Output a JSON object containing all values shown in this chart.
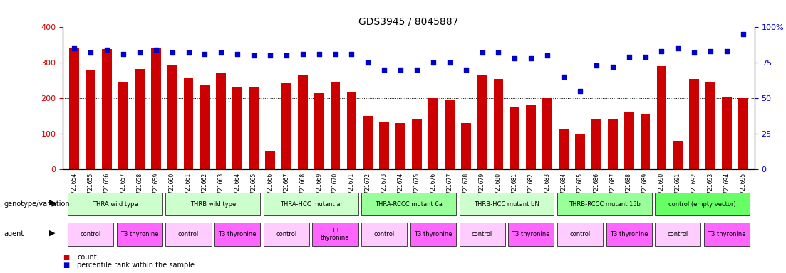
{
  "title": "GDS3945 / 8045887",
  "samples": [
    "GSM721654",
    "GSM721655",
    "GSM721656",
    "GSM721657",
    "GSM721658",
    "GSM721659",
    "GSM721660",
    "GSM721661",
    "GSM721662",
    "GSM721663",
    "GSM721664",
    "GSM721665",
    "GSM721666",
    "GSM721667",
    "GSM721668",
    "GSM721669",
    "GSM721670",
    "GSM721671",
    "GSM721672",
    "GSM721673",
    "GSM721674",
    "GSM721675",
    "GSM721676",
    "GSM721677",
    "GSM721678",
    "GSM721679",
    "GSM721680",
    "GSM721681",
    "GSM721682",
    "GSM721683",
    "GSM721684",
    "GSM721685",
    "GSM721686",
    "GSM721687",
    "GSM721688",
    "GSM721689",
    "GSM721690",
    "GSM721691",
    "GSM721692",
    "GSM721693",
    "GSM721694",
    "GSM721695"
  ],
  "counts": [
    340,
    278,
    338,
    245,
    282,
    340,
    293,
    256,
    238,
    270,
    233,
    230,
    50,
    243,
    265,
    215,
    245,
    217,
    150,
    135,
    130,
    140,
    200,
    195,
    130,
    265,
    255,
    175,
    180,
    200,
    115,
    100,
    140,
    140,
    160,
    155,
    290,
    80,
    255,
    245,
    205,
    200
  ],
  "percentile_ranks": [
    85,
    82,
    84,
    81,
    82,
    84,
    82,
    82,
    81,
    82,
    81,
    80,
    80,
    80,
    81,
    81,
    81,
    81,
    75,
    70,
    70,
    70,
    75,
    75,
    70,
    82,
    82,
    78,
    78,
    80,
    65,
    55,
    73,
    72,
    79,
    79,
    83,
    85,
    82,
    83,
    83,
    95
  ],
  "ylim_left": [
    0,
    400
  ],
  "ylim_right": [
    0,
    100
  ],
  "yticks_left": [
    0,
    100,
    200,
    300,
    400
  ],
  "yticks_right": [
    0,
    25,
    50,
    75,
    100
  ],
  "bar_color": "#cc0000",
  "dot_color": "#0000cc",
  "background_color": "#ffffff",
  "grid_color": "#000000",
  "genotype_groups": [
    {
      "label": "THRA wild type",
      "start": 0,
      "end": 5,
      "color": "#ccffcc"
    },
    {
      "label": "THRB wild type",
      "start": 6,
      "end": 11,
      "color": "#ccffcc"
    },
    {
      "label": "THRA-HCC mutant al",
      "start": 12,
      "end": 17,
      "color": "#ccffcc"
    },
    {
      "label": "THRA-RCCC mutant 6a",
      "start": 18,
      "end": 23,
      "color": "#99ff99"
    },
    {
      "label": "THRB-HCC mutant bN",
      "start": 24,
      "end": 29,
      "color": "#ccffcc"
    },
    {
      "label": "THRB-RCCC mutant 15b",
      "start": 30,
      "end": 35,
      "color": "#99ff99"
    },
    {
      "label": "control (empty vector)",
      "start": 36,
      "end": 41,
      "color": "#66ff66"
    }
  ],
  "agent_groups": [
    {
      "label": "control",
      "start": 0,
      "end": 2,
      "color": "#ffccff"
    },
    {
      "label": "T3 thyronine",
      "start": 3,
      "end": 5,
      "color": "#ff66ff"
    },
    {
      "label": "control",
      "start": 6,
      "end": 8,
      "color": "#ffccff"
    },
    {
      "label": "T3 thyronine",
      "start": 9,
      "end": 11,
      "color": "#ff66ff"
    },
    {
      "label": "control",
      "start": 12,
      "end": 14,
      "color": "#ffccff"
    },
    {
      "label": "T3\nthyronine",
      "start": 15,
      "end": 17,
      "color": "#ff66ff"
    },
    {
      "label": "control",
      "start": 18,
      "end": 20,
      "color": "#ffccff"
    },
    {
      "label": "T3 thyronine",
      "start": 21,
      "end": 23,
      "color": "#ff66ff"
    },
    {
      "label": "control",
      "start": 24,
      "end": 26,
      "color": "#ffccff"
    },
    {
      "label": "T3 thyronine",
      "start": 27,
      "end": 29,
      "color": "#ff66ff"
    },
    {
      "label": "control",
      "start": 30,
      "end": 32,
      "color": "#ffccff"
    },
    {
      "label": "T3 thyronine",
      "start": 33,
      "end": 35,
      "color": "#ff66ff"
    },
    {
      "label": "control",
      "start": 36,
      "end": 38,
      "color": "#ffccff"
    },
    {
      "label": "T3 thyronine",
      "start": 39,
      "end": 41,
      "color": "#ff66ff"
    }
  ],
  "legend_items": [
    {
      "label": "count",
      "color": "#cc0000",
      "marker": "s"
    },
    {
      "label": "percentile rank within the sample",
      "color": "#0000cc",
      "marker": "s"
    }
  ]
}
